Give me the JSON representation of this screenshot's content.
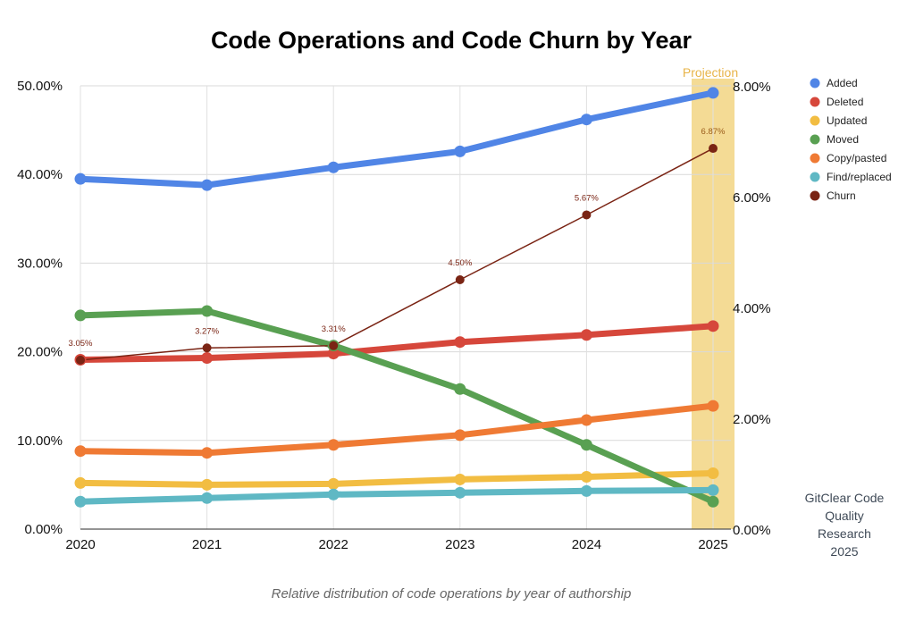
{
  "chart_data": {
    "type": "line",
    "title": "Code Operations and Code Churn by Year",
    "x": [
      "2020",
      "2021",
      "2022",
      "2023",
      "2024",
      "2025"
    ],
    "y_left": {
      "min": 0,
      "max": 50,
      "ticks": [
        "0.00%",
        "10.00%",
        "20.00%",
        "30.00%",
        "40.00%",
        "50.00%"
      ]
    },
    "y_right": {
      "min": 0,
      "max": 8,
      "ticks": [
        "0.00%",
        "2.00%",
        "4.00%",
        "6.00%",
        "8.00%"
      ]
    },
    "grid": true,
    "legend_position": "right",
    "projection": {
      "label": "Projection",
      "year": "2025",
      "color": "#f3d98f"
    },
    "series": [
      {
        "name": "Added",
        "axis": "left",
        "color": "#5085e6",
        "values": [
          39.5,
          38.8,
          40.8,
          42.6,
          46.2,
          49.2
        ]
      },
      {
        "name": "Deleted",
        "axis": "left",
        "color": "#d6473b",
        "values": [
          19.1,
          19.3,
          19.8,
          21.1,
          21.9,
          22.9
        ]
      },
      {
        "name": "Updated",
        "axis": "left",
        "color": "#f2bd42",
        "values": [
          5.2,
          5.0,
          5.1,
          5.6,
          5.9,
          6.3
        ]
      },
      {
        "name": "Moved",
        "axis": "left",
        "color": "#59a052",
        "values": [
          24.1,
          24.6,
          20.7,
          15.8,
          9.5,
          3.1
        ]
      },
      {
        "name": "Copy/pasted",
        "axis": "left",
        "color": "#ef7a34",
        "values": [
          8.8,
          8.6,
          9.5,
          10.6,
          12.3,
          13.9
        ]
      },
      {
        "name": "Find/replaced",
        "axis": "left",
        "color": "#5fb8c4",
        "values": [
          3.1,
          3.5,
          3.9,
          4.1,
          4.3,
          4.4
        ]
      },
      {
        "name": "Churn",
        "axis": "right",
        "color": "#7a2414",
        "values": [
          3.05,
          3.27,
          3.31,
          4.5,
          5.67,
          6.87
        ],
        "labels": [
          "3.05%",
          "3.27%",
          "3.31%",
          "4.50%",
          "5.67%",
          "6.87%"
        ]
      }
    ]
  },
  "caption": "Relative distribution of code operations by year of authorship",
  "source_note": [
    "GitClear Code",
    "Quality",
    "Research",
    "2025"
  ]
}
